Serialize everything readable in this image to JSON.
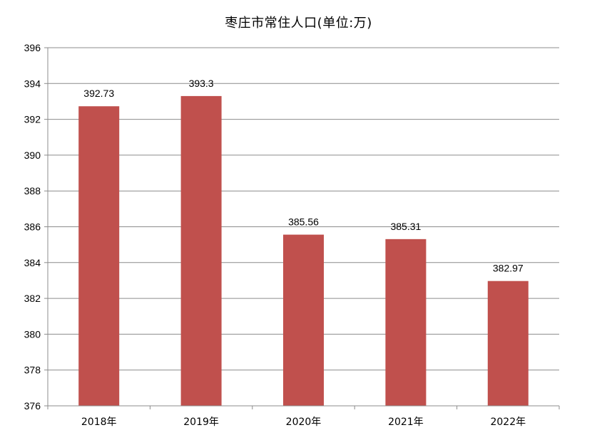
{
  "chart_data": {
    "type": "bar",
    "title": "枣庄市常住人口(单位:万)",
    "categories": [
      "2018年",
      "2019年",
      "2020年",
      "2021年",
      "2022年"
    ],
    "values": [
      392.73,
      393.3,
      385.56,
      385.31,
      382.97
    ],
    "data_labels": [
      "392.73",
      "393.3",
      "385.56",
      "385.31",
      "382.97"
    ],
    "yticks": [
      "376",
      "378",
      "380",
      "382",
      "384",
      "386",
      "388",
      "390",
      "392",
      "394",
      "396"
    ],
    "ylim": [
      376,
      396
    ],
    "ystep": 2,
    "grid": true,
    "legend": "none",
    "bar_color": "#c0504d",
    "grid_color": "#8c8c8c",
    "axis_color": "#8c8c8c"
  }
}
